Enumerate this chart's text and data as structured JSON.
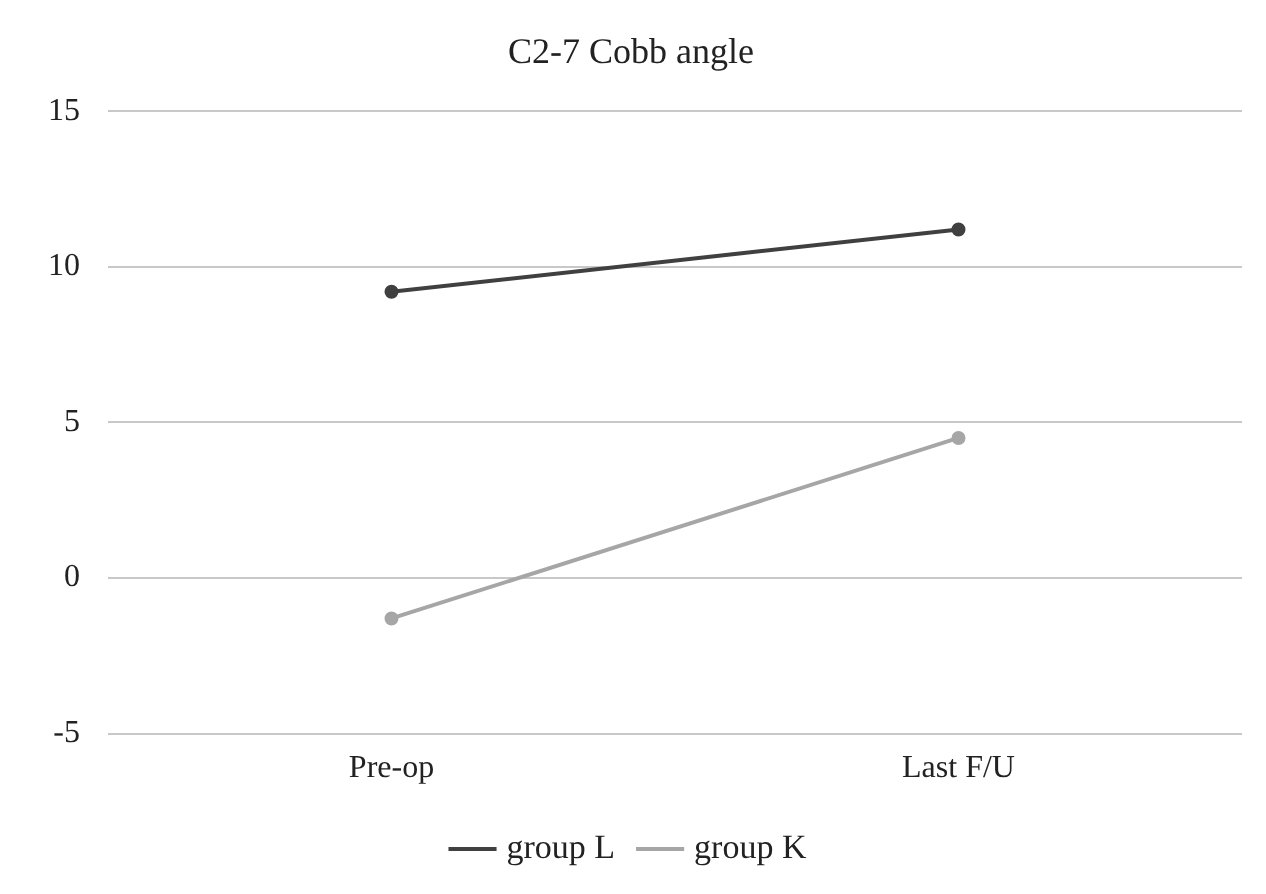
{
  "chart_data": {
    "type": "line",
    "title": "C2-7 Cobb angle",
    "categories": [
      "Pre-op",
      "Last F/U"
    ],
    "series": [
      {
        "name": "group L",
        "color": "#404040",
        "values": [
          9.2,
          11.2
        ]
      },
      {
        "name": "group K",
        "color": "#a6a6a6",
        "values": [
          -1.3,
          4.5
        ]
      }
    ],
    "ylim": [
      -5,
      15
    ],
    "yticks": [
      -5,
      0,
      5,
      10,
      15
    ],
    "grid": "y",
    "legend": "bottom",
    "marker": "circle",
    "line_style": "solid"
  }
}
